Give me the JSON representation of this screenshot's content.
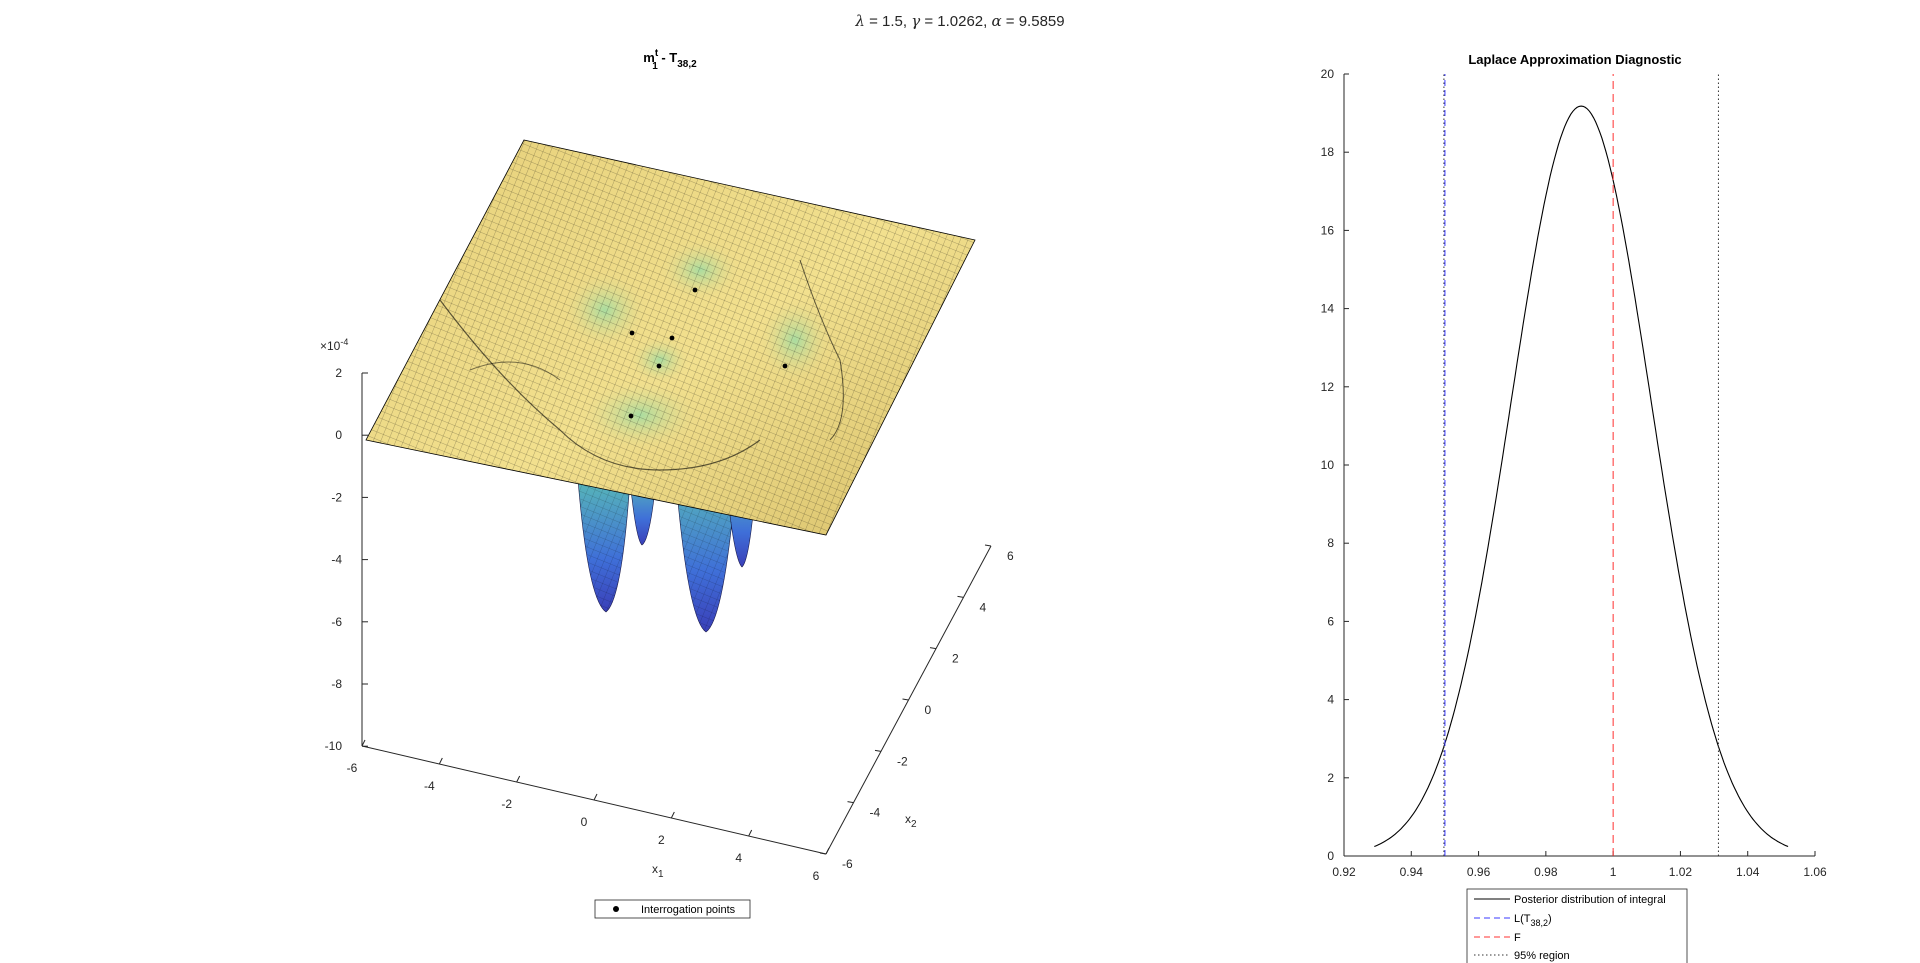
{
  "figure": {
    "suptitle": {
      "lambda_sym": "λ",
      "lambda_val": " = 1.5, ",
      "gamma_sym": "γ",
      "gamma_val": " = 1.0262, ",
      "alpha_sym": "α",
      "alpha_val": " = 9.5859"
    }
  },
  "chart_data": [
    {
      "type": "surface",
      "title_parts": {
        "m": "m",
        "sup": "t",
        "sub": "1",
        "dash": " - T",
        "sub2": "38,2"
      },
      "zlim": [
        -10,
        2
      ],
      "z_ticks": [
        "2",
        "0",
        "-2",
        "-4",
        "-6",
        "-8",
        "-10"
      ],
      "z_exponent": "×10",
      "z_exponent_power": "-4",
      "x_ticks": [
        "-6",
        "-4",
        "-2",
        "0",
        "2",
        "4",
        "6"
      ],
      "y_ticks": [
        "-6",
        "-4",
        "-2",
        "0",
        "2",
        "4",
        "6"
      ],
      "xlabel": {
        "main": "x",
        "sub": "1"
      },
      "ylabel": {
        "main": "x",
        "sub": "2"
      },
      "legend": [
        "Interrogation points"
      ],
      "colors": {
        "surface_high": "#f0e28a",
        "surface_mid": "#9fd39a",
        "surface_low": "#3b4fd6",
        "mesh": "#000000"
      }
    },
    {
      "type": "line",
      "title": "Laplace Approximation Diagnostic",
      "xlim": [
        0.92,
        1.06
      ],
      "ylim": [
        0,
        20
      ],
      "x_ticks": [
        "0.92",
        "0.94",
        "0.96",
        "0.98",
        "1",
        "1.02",
        "1.04",
        "1.06"
      ],
      "y_ticks": [
        "0",
        "2",
        "4",
        "6",
        "8",
        "10",
        "12",
        "14",
        "16",
        "18",
        "20"
      ],
      "series": [
        {
          "name": "Posterior distribution of integral",
          "style": "solid",
          "color": "#000000",
          "mean": 0.9905,
          "sd": 0.0208,
          "x_range": [
            0.929,
            1.052
          ]
        },
        {
          "name": "L(T38,2)",
          "style": "dashed",
          "color": "#3a3aff",
          "x": 0.95
        },
        {
          "name": "F",
          "style": "dashed",
          "color": "#ff3030",
          "x": 1.0
        },
        {
          "name": "95% region",
          "style": "dotted",
          "color": "#333333",
          "x": [
            0.9497,
            1.0313
          ]
        }
      ],
      "legend": [
        "Posterior distribution of integral",
        "L(T",
        "38,2",
        ")",
        "F",
        "95% region"
      ]
    }
  ]
}
